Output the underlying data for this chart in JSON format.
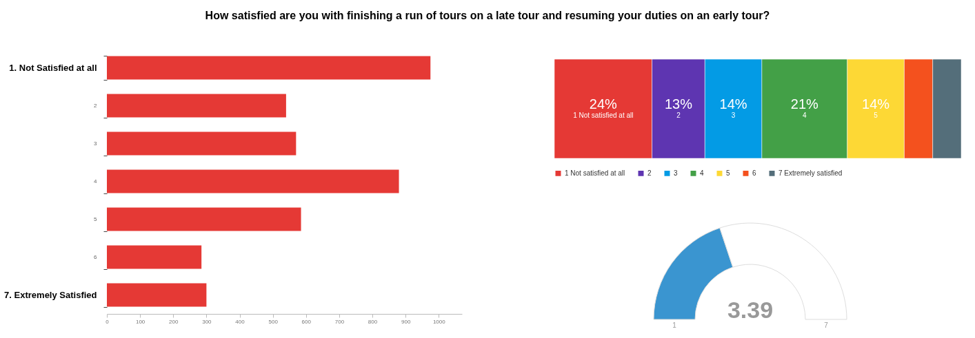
{
  "chart_data": [
    {
      "type": "bar",
      "orientation": "horizontal",
      "title": "How satisfied are you with finishing  a run of tours on a late tour and resuming your duties on an early tour?",
      "categories": [
        "1. Not Satisfied at all",
        "2",
        "3",
        "4",
        "5",
        "6",
        "7. Extremely Satisfied"
      ],
      "values": [
        975,
        540,
        570,
        880,
        585,
        285,
        300
      ],
      "color": "#e53935",
      "xlim": [
        0,
        1070
      ],
      "xticks": [
        0,
        100,
        200,
        300,
        400,
        500,
        600,
        700,
        800,
        900,
        1000
      ],
      "grid": false
    },
    {
      "type": "bar",
      "stacked": true,
      "orientation": "horizontal",
      "categories": [
        null
      ],
      "series": [
        {
          "name": "1 Not satisfied at all",
          "color": "#e53935",
          "values": [
            24
          ],
          "value_labels": [
            "24%"
          ]
        },
        {
          "name": "2",
          "color": "#5e35b1",
          "values": [
            13
          ],
          "value_labels": [
            "13%"
          ]
        },
        {
          "name": "3",
          "color": "#039be5",
          "values": [
            14
          ],
          "value_labels": [
            "14%"
          ]
        },
        {
          "name": "4",
          "color": "#43a047",
          "values": [
            21
          ],
          "value_labels": [
            "21%"
          ]
        },
        {
          "name": "5",
          "color": "#fdd835",
          "values": [
            14
          ],
          "value_labels": [
            "14%"
          ]
        },
        {
          "name": "6",
          "color": "#f4511e",
          "values": [
            7
          ],
          "value_labels": [
            null
          ]
        },
        {
          "name": "7 Extremely satisfied",
          "color": "#546e7a",
          "values": [
            7
          ],
          "value_labels": [
            null
          ]
        }
      ],
      "xlim": [
        0,
        100
      ],
      "tick_labels": false,
      "legend": "bottom"
    },
    {
      "type": "donut",
      "categories": [
        null,
        null
      ],
      "values": [
        39.8,
        60.2
      ],
      "colors": [
        "#3a95d0",
        "#ffffff"
      ],
      "annotations": [
        "3.39",
        "1",
        "7"
      ]
    }
  ]
}
